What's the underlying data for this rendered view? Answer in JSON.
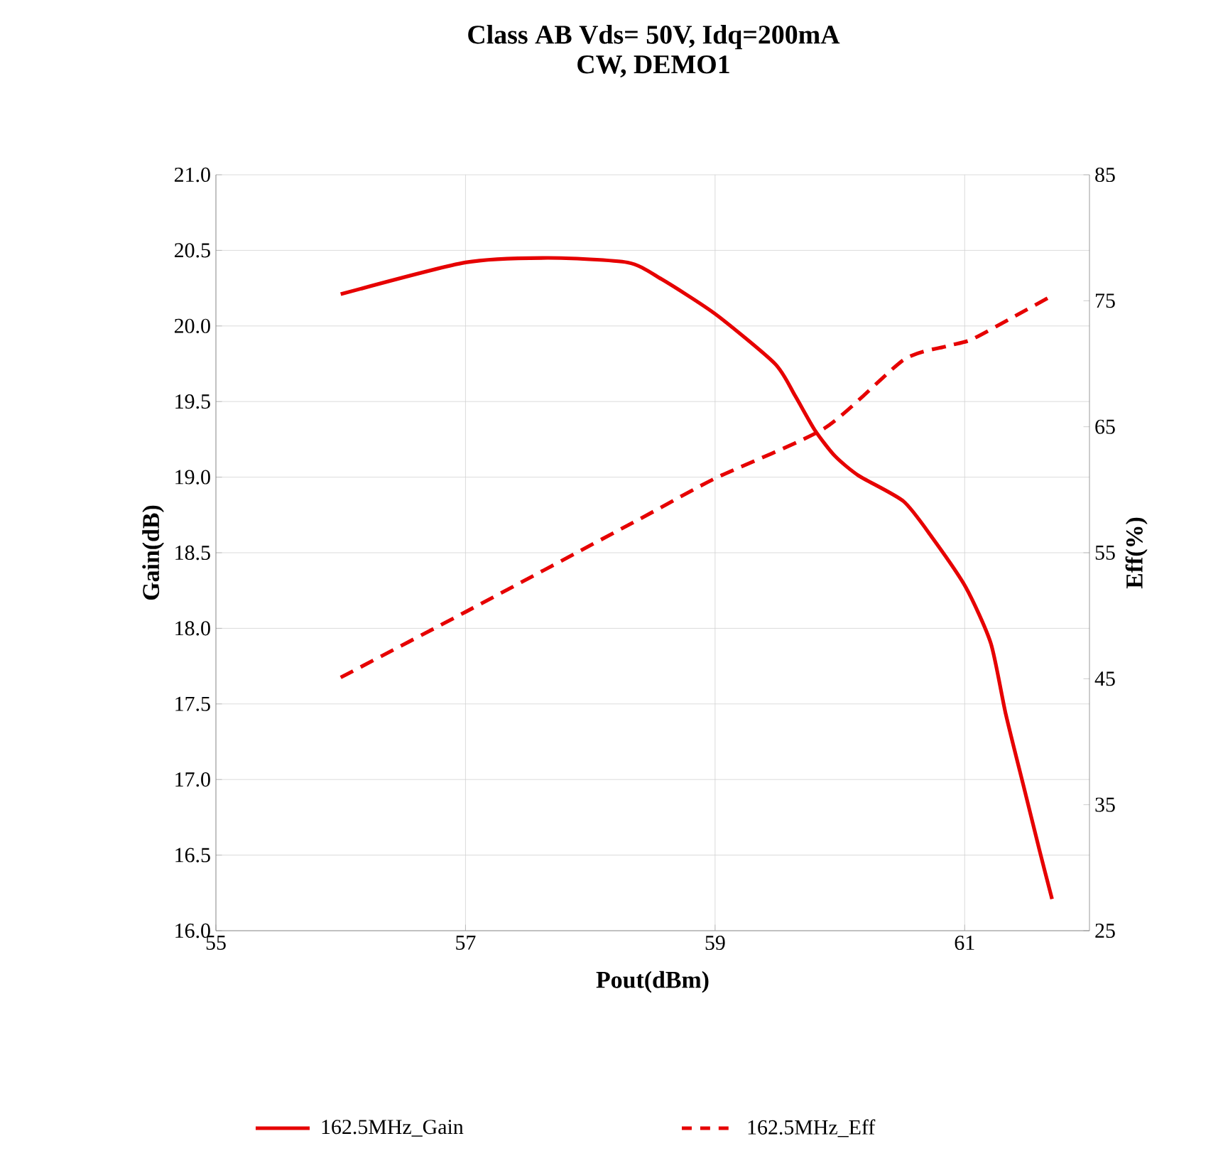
{
  "chart_data": {
    "type": "line",
    "title": "Class AB Vds= 50V, Idq=200mA",
    "subtitle": "CW, DEMO1",
    "xlabel": "Pout(dBm)",
    "ylabel": "Gain(dB)",
    "y2label": "Eff(%)",
    "xlim": [
      55,
      62
    ],
    "xticks": [
      55,
      57,
      59,
      61
    ],
    "ylim": [
      16,
      21
    ],
    "yticks": [
      {
        "value": 16,
        "label": "16.0"
      },
      {
        "value": 16.5,
        "label": "16.5"
      },
      {
        "value": 17,
        "label": "17.0"
      },
      {
        "value": 17.5,
        "label": "17.5"
      },
      {
        "value": 18,
        "label": "18.0"
      },
      {
        "value": 18.5,
        "label": "18.5"
      },
      {
        "value": 19,
        "label": "19.0"
      },
      {
        "value": 19.5,
        "label": "19.5"
      },
      {
        "value": 20,
        "label": "20.0"
      },
      {
        "value": 20.5,
        "label": "20.5"
      },
      {
        "value": 21,
        "label": "21.0"
      }
    ],
    "y2lim": [
      25,
      85
    ],
    "y2ticks": [
      25,
      35,
      45,
      55,
      65,
      75,
      85
    ],
    "grid": true,
    "legend": "bottom",
    "series": [
      {
        "name": "162.5MHz_Gain",
        "color": "#e60000",
        "line_style": "solid",
        "x": [
          56.0,
          57.0,
          57.66,
          58.3,
          58.57,
          59.0,
          59.48,
          59.64,
          59.8,
          59.96,
          60.15,
          60.51,
          60.74,
          61.01,
          61.21,
          61.33,
          61.48,
          61.6,
          61.7
        ],
        "values": [
          20.21,
          20.42,
          20.45,
          20.42,
          20.31,
          20.08,
          19.75,
          19.54,
          19.31,
          19.14,
          19.01,
          18.84,
          18.6,
          18.27,
          17.9,
          17.43,
          16.93,
          16.53,
          16.21
        ]
      },
      {
        "name": "162.5MHz_Eff",
        "color": "#e60000",
        "line_style": "dashed",
        "axis": "y2",
        "x": [
          56.0,
          57.0,
          58.4,
          59.0,
          59.88,
          60.51,
          60.86,
          61.05,
          61.37,
          61.7
        ],
        "values": [
          45.1,
          50.3,
          57.7,
          60.9,
          64.9,
          70.3,
          71.4,
          71.9,
          73.6,
          75.4
        ]
      }
    ]
  }
}
